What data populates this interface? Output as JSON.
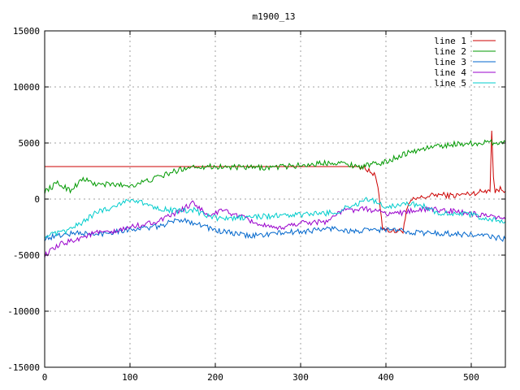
{
  "chart_data": {
    "type": "line",
    "title": "m1900_13",
    "xlabel": "",
    "ylabel": "",
    "xlim": [
      0,
      540
    ],
    "ylim": [
      -15000,
      15000
    ],
    "xticks": [
      0,
      100,
      200,
      300,
      400,
      500
    ],
    "yticks": [
      -15000,
      -10000,
      -5000,
      0,
      5000,
      10000,
      15000
    ],
    "grid": true,
    "legend_position": "top-right",
    "series": [
      {
        "name": "line 1",
        "color": "#cc0000",
        "x": [
          0,
          50,
          100,
          150,
          200,
          250,
          300,
          350,
          370,
          380,
          388,
          392,
          396,
          400,
          410,
          420,
          424,
          428,
          432,
          440,
          460,
          480,
          500,
          515,
          522,
          524,
          526,
          528,
          534,
          540
        ],
        "y": [
          2900,
          2900,
          2900,
          2900,
          2900,
          2900,
          2900,
          2900,
          2900,
          2600,
          2000,
          200,
          -2500,
          -2700,
          -2900,
          -2800,
          -1200,
          -300,
          -100,
          100,
          400,
          300,
          500,
          700,
          900,
          6000,
          2000,
          700,
          900,
          700
        ]
      },
      {
        "name": "line 2",
        "color": "#009900",
        "x": [
          0,
          15,
          30,
          45,
          60,
          80,
          100,
          120,
          150,
          170,
          200,
          230,
          260,
          300,
          340,
          370,
          400,
          420,
          450,
          480,
          510,
          540
        ],
        "y": [
          700,
          1400,
          800,
          1800,
          1300,
          1300,
          1200,
          1600,
          2400,
          2900,
          2900,
          2800,
          2800,
          3000,
          3300,
          2900,
          3300,
          4000,
          4600,
          4900,
          5000,
          5100
        ]
      },
      {
        "name": "line 3",
        "color": "#0066cc",
        "x": [
          0,
          20,
          40,
          60,
          80,
          100,
          130,
          160,
          180,
          200,
          240,
          280,
          300,
          340,
          360,
          400,
          440,
          480,
          520,
          540
        ],
        "y": [
          -3500,
          -3200,
          -3000,
          -3200,
          -2900,
          -2700,
          -2500,
          -1800,
          -2200,
          -2800,
          -3300,
          -3000,
          -2900,
          -2600,
          -2900,
          -2700,
          -3000,
          -3100,
          -3300,
          -3600
        ]
      },
      {
        "name": "line 4",
        "color": "#9900cc",
        "x": [
          0,
          20,
          40,
          60,
          80,
          100,
          120,
          140,
          160,
          175,
          190,
          210,
          250,
          270,
          300,
          330,
          350,
          380,
          400,
          420,
          440,
          470,
          500,
          520,
          540
        ],
        "y": [
          -5000,
          -4000,
          -3500,
          -3000,
          -3000,
          -2500,
          -2200,
          -1800,
          -1000,
          -300,
          -1500,
          -1000,
          -2200,
          -2700,
          -2100,
          -2000,
          -1000,
          -900,
          -1300,
          -1200,
          -900,
          -1000,
          -1300,
          -1600,
          -1800
        ]
      },
      {
        "name": "line 5",
        "color": "#00cccc",
        "x": [
          0,
          20,
          40,
          60,
          80,
          100,
          120,
          140,
          160,
          175,
          190,
          210,
          240,
          270,
          300,
          340,
          360,
          380,
          400,
          420,
          440,
          460,
          480,
          500,
          520,
          540
        ],
        "y": [
          -3300,
          -3000,
          -2300,
          -1200,
          -700,
          0,
          -500,
          -900,
          -1100,
          -1000,
          -1500,
          -1800,
          -1600,
          -1500,
          -1400,
          -1200,
          -600,
          0,
          -700,
          -400,
          -500,
          -1200,
          -1300,
          -1400,
          -1800,
          -2000
        ]
      }
    ]
  }
}
